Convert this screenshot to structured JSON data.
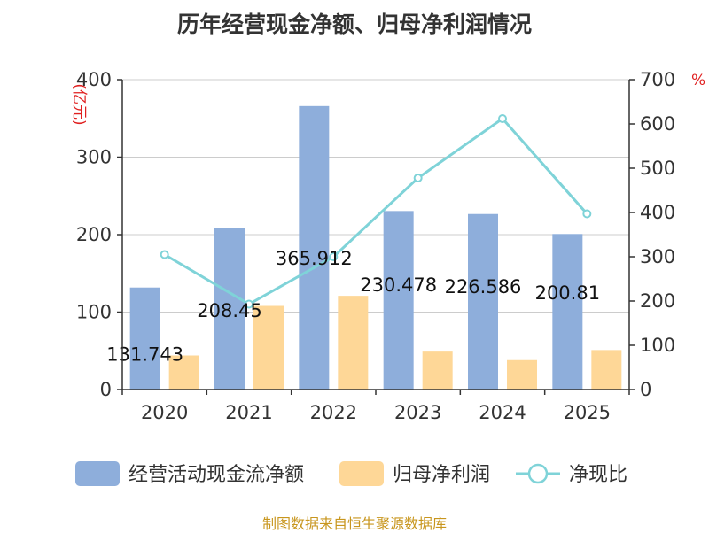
{
  "title": "历年经营现金净额、归母净利润情况",
  "source": "制图数据来自恒生聚源数据库",
  "left_unit": "(亿元)",
  "right_unit": "%",
  "colors": {
    "cash": "#8eaedb",
    "profit": "#fed797",
    "ratio": "#7fd3d8",
    "axis": "#333333",
    "grid": "#cccccc",
    "unit": "#e02020",
    "source": "#c8961e"
  },
  "chart_data": {
    "type": "bar",
    "title": "历年经营现金净额、归母净利润情况",
    "categories": [
      "2020",
      "2021",
      "2022",
      "2023",
      "2024",
      "2025"
    ],
    "series": [
      {
        "name": "经营活动现金流净额",
        "type": "bar",
        "axis": "left",
        "values": [
          131.743,
          208.45,
          365.912,
          230.478,
          226.586,
          200.81
        ],
        "labels": [
          "131.743",
          "208.45",
          "365.912",
          "230.478",
          "226.586",
          "200.81"
        ]
      },
      {
        "name": "归母净利润",
        "type": "bar",
        "axis": "left",
        "values": [
          44,
          108,
          121,
          49,
          38,
          51
        ]
      },
      {
        "name": "净现比",
        "type": "line",
        "axis": "right",
        "values": [
          305,
          193,
          300,
          478,
          612,
          397
        ]
      }
    ],
    "y_left": {
      "label": "(亿元)",
      "ylim": [
        0,
        400
      ],
      "ticks": [
        0,
        100,
        200,
        300,
        400
      ]
    },
    "y_right": {
      "label": "%",
      "ylim": [
        0,
        700
      ],
      "ticks": [
        0,
        100,
        200,
        300,
        400,
        500,
        600,
        700
      ]
    },
    "grid": true,
    "legend": "bottom"
  }
}
